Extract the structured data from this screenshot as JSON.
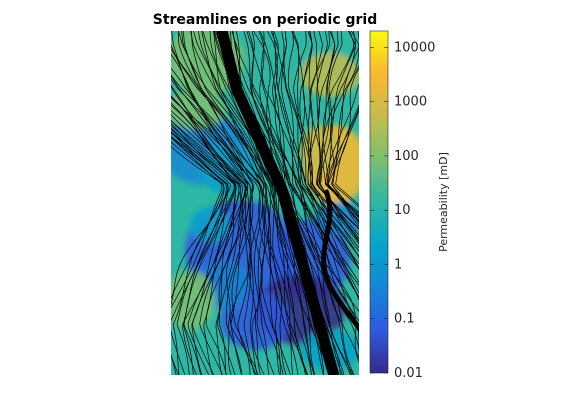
{
  "chart_data": {
    "type": "heatmap",
    "title": "Streamlines on periodic grid",
    "xlabel": "",
    "ylabel": "",
    "colorbar": {
      "label": "Permeability [mD]",
      "scale": "log",
      "range": [
        0.01,
        20000
      ],
      "ticks": [
        0.01,
        0.1,
        1,
        10,
        100,
        1000,
        10000
      ],
      "tick_labels": [
        "0.01",
        "0.1",
        "1",
        "10",
        "100",
        "1000",
        "10000"
      ],
      "colormap": "parula"
    },
    "grid": false,
    "overlay": "streamlines",
    "streamline_color": "#000000"
  },
  "colors": {
    "parula": [
      "#352a87",
      "#2d5be0",
      "#1487d4",
      "#06a4ca",
      "#2eb7a4",
      "#7bbf70",
      "#c4bc4e",
      "#fbb830",
      "#f9fb0e"
    ]
  }
}
